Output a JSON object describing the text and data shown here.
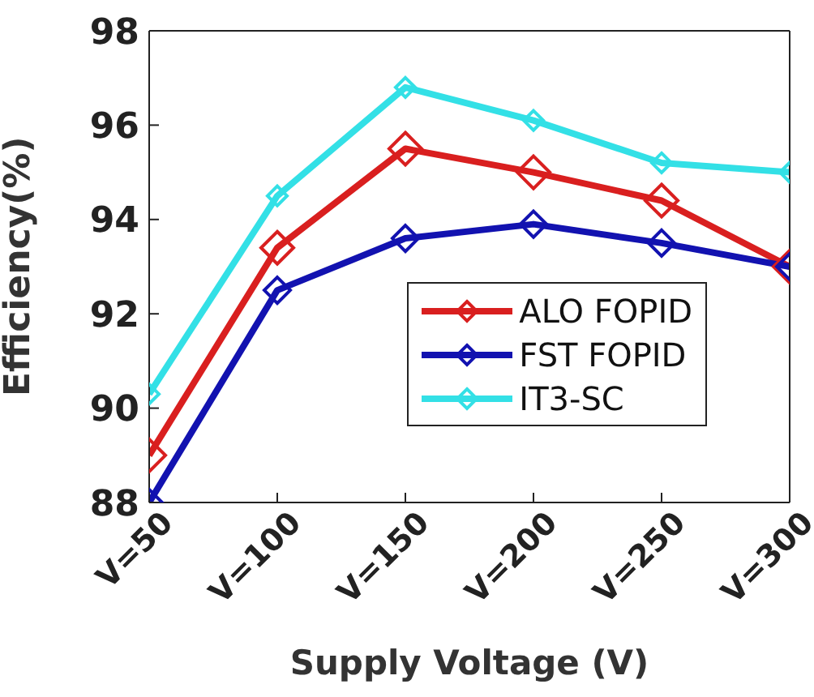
{
  "chart_data": {
    "type": "line",
    "xlabel": "Supply Voltage (V)",
    "ylabel": "Efficiency(%)",
    "categories": [
      "V=50",
      "V=100",
      "V=150",
      "V=200",
      "V=250",
      "V=300"
    ],
    "series": [
      {
        "name": "ALO FOPID",
        "color": "#d91f1f",
        "values": [
          89.0,
          93.4,
          95.5,
          95.0,
          94.4,
          93.0
        ]
      },
      {
        "name": "FST FOPID",
        "color": "#1212b0",
        "values": [
          88.0,
          92.5,
          93.6,
          93.9,
          93.5,
          93.0
        ]
      },
      {
        "name": "IT3-SC",
        "color": "#33e0e6",
        "values": [
          90.3,
          94.5,
          96.8,
          96.1,
          95.2,
          95.0
        ]
      }
    ],
    "ylim": [
      88,
      98
    ],
    "yticks": [
      88,
      90,
      92,
      94,
      96,
      98
    ],
    "grid": false,
    "legend": "right",
    "marker": "diamond",
    "line_style": "solid"
  }
}
